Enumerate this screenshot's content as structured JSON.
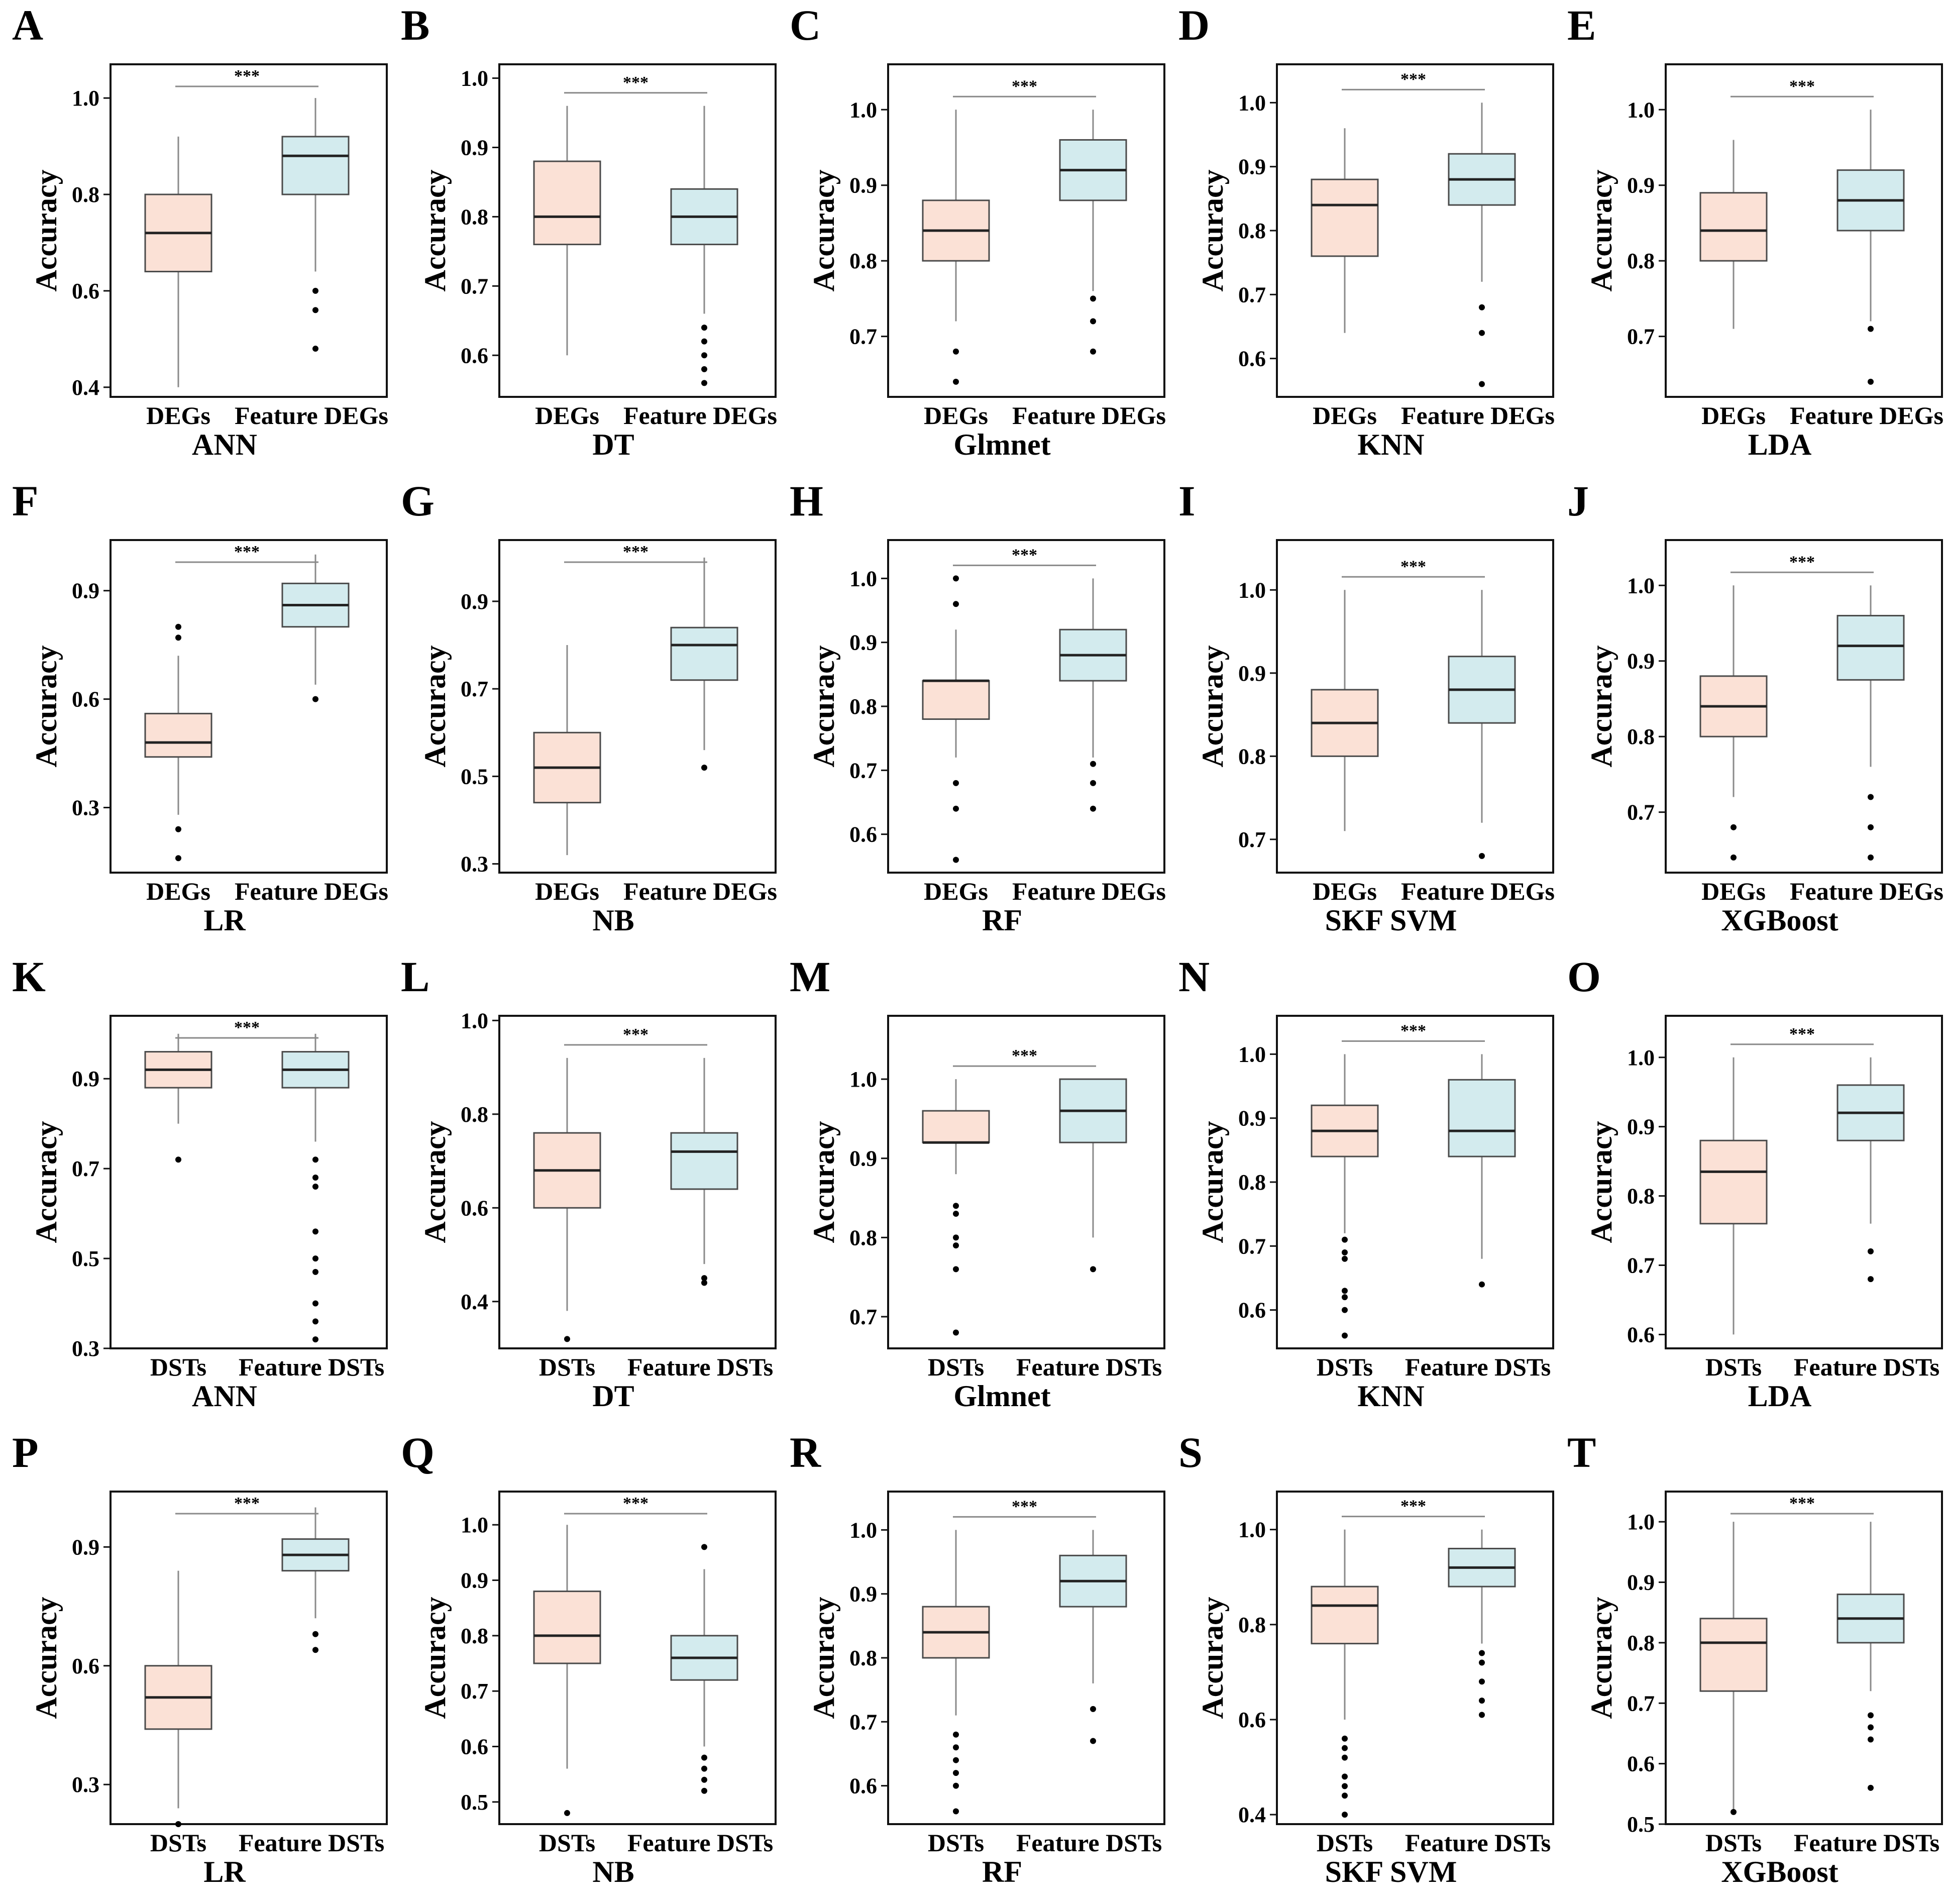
{
  "figure": {
    "y_label": "Accuracy",
    "significance": "***"
  },
  "chart_data": [
    {
      "panel": "A",
      "model": "ANN",
      "type": "box",
      "categories": [
        "DEGs",
        "Feature DEGs"
      ],
      "ylim": [
        0.38,
        1.07
      ],
      "yticks": [
        0.4,
        0.6,
        0.8,
        1.0
      ],
      "ytick_labels": [
        "0.4",
        "0.6",
        "0.8",
        "1.0"
      ],
      "boxes": [
        {
          "min": 0.4,
          "q1": 0.64,
          "median": 0.72,
          "q3": 0.8,
          "max": 0.92,
          "outliers": []
        },
        {
          "min": 0.64,
          "q1": 0.8,
          "median": 0.88,
          "q3": 0.92,
          "max": 1.0,
          "outliers": [
            0.6,
            0.56,
            0.48
          ]
        }
      ]
    },
    {
      "panel": "B",
      "model": "DT",
      "type": "box",
      "categories": [
        "DEGs",
        "Feature DEGs"
      ],
      "ylim": [
        0.54,
        1.02
      ],
      "yticks": [
        0.6,
        0.7,
        0.8,
        0.9,
        1.0
      ],
      "ytick_labels": [
        "0.6",
        "0.7",
        "0.8",
        "0.9",
        "1.0"
      ],
      "boxes": [
        {
          "min": 0.6,
          "q1": 0.76,
          "median": 0.8,
          "q3": 0.88,
          "max": 0.96,
          "outliers": []
        },
        {
          "min": 0.66,
          "q1": 0.76,
          "median": 0.8,
          "q3": 0.84,
          "max": 0.96,
          "outliers": [
            0.64,
            0.62,
            0.6,
            0.58,
            0.56
          ]
        }
      ]
    },
    {
      "panel": "C",
      "model": "Glmnet",
      "type": "box",
      "categories": [
        "DEGs",
        "Feature DEGs"
      ],
      "ylim": [
        0.62,
        1.06
      ],
      "yticks": [
        0.7,
        0.8,
        0.9,
        1.0
      ],
      "ytick_labels": [
        "0.7",
        "0.8",
        "0.9",
        "1.0"
      ],
      "boxes": [
        {
          "min": 0.72,
          "q1": 0.8,
          "median": 0.84,
          "q3": 0.88,
          "max": 1.0,
          "outliers": [
            0.68,
            0.64
          ]
        },
        {
          "min": 0.76,
          "q1": 0.88,
          "median": 0.92,
          "q3": 0.96,
          "max": 1.0,
          "outliers": [
            0.75,
            0.72,
            0.68
          ]
        }
      ]
    },
    {
      "panel": "D",
      "model": "KNN",
      "type": "box",
      "categories": [
        "DEGs",
        "Feature DEGs"
      ],
      "ylim": [
        0.54,
        1.06
      ],
      "yticks": [
        0.6,
        0.7,
        0.8,
        0.9,
        1.0
      ],
      "ytick_labels": [
        "0.6",
        "0.7",
        "0.8",
        "0.9",
        "1.0"
      ],
      "boxes": [
        {
          "min": 0.64,
          "q1": 0.76,
          "median": 0.84,
          "q3": 0.88,
          "max": 0.96,
          "outliers": []
        },
        {
          "min": 0.72,
          "q1": 0.84,
          "median": 0.88,
          "q3": 0.92,
          "max": 1.0,
          "outliers": [
            0.68,
            0.64,
            0.56
          ]
        }
      ]
    },
    {
      "panel": "E",
      "model": "LDA",
      "type": "box",
      "categories": [
        "DEGs",
        "Feature DEGs"
      ],
      "ylim": [
        0.62,
        1.06
      ],
      "yticks": [
        0.7,
        0.8,
        0.9,
        1.0
      ],
      "ytick_labels": [
        "0.7",
        "0.8",
        "0.9",
        "1.0"
      ],
      "boxes": [
        {
          "min": 0.71,
          "q1": 0.8,
          "median": 0.84,
          "q3": 0.89,
          "max": 0.96,
          "outliers": []
        },
        {
          "min": 0.72,
          "q1": 0.84,
          "median": 0.88,
          "q3": 0.92,
          "max": 1.0,
          "outliers": [
            0.71,
            0.64
          ]
        }
      ]
    },
    {
      "panel": "F",
      "model": "LR",
      "type": "box",
      "categories": [
        "DEGs",
        "Feature DEGs"
      ],
      "ylim": [
        0.12,
        1.04
      ],
      "yticks": [
        0.3,
        0.6,
        0.9
      ],
      "ytick_labels": [
        "0.3",
        "0.6",
        "0.9"
      ],
      "boxes": [
        {
          "min": 0.28,
          "q1": 0.44,
          "median": 0.48,
          "q3": 0.56,
          "max": 0.72,
          "outliers": [
            0.8,
            0.77,
            0.24,
            0.16
          ]
        },
        {
          "min": 0.64,
          "q1": 0.8,
          "median": 0.86,
          "q3": 0.92,
          "max": 1.0,
          "outliers": [
            0.6
          ]
        }
      ]
    },
    {
      "panel": "G",
      "model": "NB",
      "type": "box",
      "categories": [
        "DEGs",
        "Feature DEGs"
      ],
      "ylim": [
        0.28,
        1.04
      ],
      "yticks": [
        0.3,
        0.5,
        0.7,
        0.9
      ],
      "ytick_labels": [
        "0.3",
        "0.5",
        "0.7",
        "0.9"
      ],
      "boxes": [
        {
          "min": 0.32,
          "q1": 0.44,
          "median": 0.52,
          "q3": 0.6,
          "max": 0.8,
          "outliers": []
        },
        {
          "min": 0.56,
          "q1": 0.72,
          "median": 0.8,
          "q3": 0.84,
          "max": 1.0,
          "outliers": [
            0.52
          ]
        }
      ]
    },
    {
      "panel": "H",
      "model": "RF",
      "type": "box",
      "categories": [
        "DEGs",
        "Feature DEGs"
      ],
      "ylim": [
        0.54,
        1.06
      ],
      "yticks": [
        0.6,
        0.7,
        0.8,
        0.9,
        1.0
      ],
      "ytick_labels": [
        "0.6",
        "0.7",
        "0.8",
        "0.9",
        "1.0"
      ],
      "boxes": [
        {
          "min": 0.72,
          "q1": 0.78,
          "median": 0.84,
          "q3": 0.84,
          "max": 0.92,
          "outliers": [
            1.0,
            0.96,
            0.68,
            0.64,
            0.56
          ]
        },
        {
          "min": 0.72,
          "q1": 0.84,
          "median": 0.88,
          "q3": 0.92,
          "max": 1.0,
          "outliers": [
            0.71,
            0.68,
            0.64
          ]
        }
      ]
    },
    {
      "panel": "I",
      "model": "SKF SVM",
      "type": "box",
      "categories": [
        "DEGs",
        "Feature DEGs"
      ],
      "ylim": [
        0.66,
        1.06
      ],
      "yticks": [
        0.7,
        0.8,
        0.9,
        1.0
      ],
      "ytick_labels": [
        "0.7",
        "0.8",
        "0.9",
        "1.0"
      ],
      "boxes": [
        {
          "min": 0.71,
          "q1": 0.8,
          "median": 0.84,
          "q3": 0.88,
          "max": 1.0,
          "outliers": []
        },
        {
          "min": 0.72,
          "q1": 0.84,
          "median": 0.88,
          "q3": 0.92,
          "max": 1.0,
          "outliers": [
            0.68
          ]
        }
      ]
    },
    {
      "panel": "J",
      "model": "XGBoost",
      "type": "box",
      "categories": [
        "DEGs",
        "Feature DEGs"
      ],
      "ylim": [
        0.62,
        1.06
      ],
      "yticks": [
        0.7,
        0.8,
        0.9,
        1.0
      ],
      "ytick_labels": [
        "0.7",
        "0.8",
        "0.9",
        "1.0"
      ],
      "boxes": [
        {
          "min": 0.72,
          "q1": 0.8,
          "median": 0.84,
          "q3": 0.88,
          "max": 1.0,
          "outliers": [
            0.68,
            0.64
          ]
        },
        {
          "min": 0.76,
          "q1": 0.875,
          "median": 0.92,
          "q3": 0.96,
          "max": 1.0,
          "outliers": [
            0.72,
            0.68,
            0.64
          ]
        }
      ]
    },
    {
      "panel": "K",
      "model": "ANN",
      "type": "box",
      "categories": [
        "DSTs",
        "Feature DSTs"
      ],
      "ylim": [
        0.3,
        1.04
      ],
      "yticks": [
        0.3,
        0.5,
        0.7,
        0.9
      ],
      "ytick_labels": [
        "0.3",
        "0.5",
        "0.7",
        "0.9"
      ],
      "boxes": [
        {
          "min": 0.8,
          "q1": 0.88,
          "median": 0.92,
          "q3": 0.96,
          "max": 1.0,
          "outliers": [
            0.72
          ]
        },
        {
          "min": 0.76,
          "q1": 0.88,
          "median": 0.92,
          "q3": 0.96,
          "max": 1.0,
          "outliers": [
            0.72,
            0.68,
            0.66,
            0.56,
            0.5,
            0.47,
            0.4,
            0.36,
            0.32
          ]
        }
      ]
    },
    {
      "panel": "L",
      "model": "DT",
      "type": "box",
      "categories": [
        "DSTs",
        "Feature DSTs"
      ],
      "ylim": [
        0.3,
        1.01
      ],
      "yticks": [
        0.4,
        0.6,
        0.8,
        1.0
      ],
      "ytick_labels": [
        "0.4",
        "0.6",
        "0.8",
        "1.0"
      ],
      "boxes": [
        {
          "min": 0.38,
          "q1": 0.6,
          "median": 0.68,
          "q3": 0.76,
          "max": 0.92,
          "outliers": [
            0.32
          ]
        },
        {
          "min": 0.48,
          "q1": 0.64,
          "median": 0.72,
          "q3": 0.76,
          "max": 0.92,
          "outliers": [
            0.45,
            0.44
          ]
        }
      ]
    },
    {
      "panel": "M",
      "model": "Glmnet",
      "type": "box",
      "categories": [
        "DSTs",
        "Feature DSTs"
      ],
      "ylim": [
        0.66,
        1.08
      ],
      "yticks": [
        0.7,
        0.8,
        0.9,
        1.0
      ],
      "ytick_labels": [
        "0.7",
        "0.8",
        "0.9",
        "1.0"
      ],
      "boxes": [
        {
          "min": 0.88,
          "q1": 0.92,
          "median": 0.92,
          "q3": 0.96,
          "max": 1.0,
          "outliers": [
            0.84,
            0.83,
            0.8,
            0.79,
            0.76,
            0.68
          ]
        },
        {
          "min": 0.8,
          "q1": 0.92,
          "median": 0.96,
          "q3": 1.0,
          "max": 1.0,
          "outliers": [
            0.76
          ]
        }
      ]
    },
    {
      "panel": "N",
      "model": "KNN",
      "type": "box",
      "categories": [
        "DSTs",
        "Feature DSTs"
      ],
      "ylim": [
        0.54,
        1.06
      ],
      "yticks": [
        0.6,
        0.7,
        0.8,
        0.9,
        1.0
      ],
      "ytick_labels": [
        "0.6",
        "0.7",
        "0.8",
        "0.9",
        "1.0"
      ],
      "boxes": [
        {
          "min": 0.72,
          "q1": 0.84,
          "median": 0.88,
          "q3": 0.92,
          "max": 1.0,
          "outliers": [
            0.71,
            0.69,
            0.68,
            0.63,
            0.62,
            0.6,
            0.56
          ]
        },
        {
          "min": 0.68,
          "q1": 0.84,
          "median": 0.88,
          "q3": 0.96,
          "max": 1.0,
          "outliers": [
            0.64
          ]
        }
      ]
    },
    {
      "panel": "O",
      "model": "LDA",
      "type": "box",
      "categories": [
        "DSTs",
        "Feature DSTs"
      ],
      "ylim": [
        0.58,
        1.06
      ],
      "yticks": [
        0.6,
        0.7,
        0.8,
        0.9,
        1.0
      ],
      "ytick_labels": [
        "0.6",
        "0.7",
        "0.8",
        "0.9",
        "1.0"
      ],
      "boxes": [
        {
          "min": 0.6,
          "q1": 0.76,
          "median": 0.835,
          "q3": 0.88,
          "max": 1.0,
          "outliers": []
        },
        {
          "min": 0.76,
          "q1": 0.88,
          "median": 0.92,
          "q3": 0.96,
          "max": 1.0,
          "outliers": [
            0.72,
            0.68
          ]
        }
      ]
    },
    {
      "panel": "P",
      "model": "LR",
      "type": "box",
      "categories": [
        "DSTs",
        "Feature DSTs"
      ],
      "ylim": [
        0.2,
        1.04
      ],
      "yticks": [
        0.3,
        0.6,
        0.9
      ],
      "ytick_labels": [
        "0.3",
        "0.6",
        "0.9"
      ],
      "boxes": [
        {
          "min": 0.24,
          "q1": 0.44,
          "median": 0.52,
          "q3": 0.6,
          "max": 0.84,
          "outliers": [
            0.2
          ]
        },
        {
          "min": 0.72,
          "q1": 0.84,
          "median": 0.88,
          "q3": 0.92,
          "max": 1.0,
          "outliers": [
            0.68,
            0.64
          ]
        }
      ]
    },
    {
      "panel": "Q",
      "model": "NB",
      "type": "box",
      "categories": [
        "DSTs",
        "Feature DSTs"
      ],
      "ylim": [
        0.46,
        1.06
      ],
      "yticks": [
        0.5,
        0.6,
        0.7,
        0.8,
        0.9,
        1.0
      ],
      "ytick_labels": [
        "0.5",
        "0.6",
        "0.7",
        "0.8",
        "0.9",
        "1.0"
      ],
      "boxes": [
        {
          "min": 0.56,
          "q1": 0.75,
          "median": 0.8,
          "q3": 0.88,
          "max": 1.0,
          "outliers": [
            0.48
          ]
        },
        {
          "min": 0.6,
          "q1": 0.72,
          "median": 0.76,
          "q3": 0.8,
          "max": 0.92,
          "outliers": [
            0.96,
            0.58,
            0.56,
            0.54,
            0.52
          ]
        }
      ]
    },
    {
      "panel": "R",
      "model": "RF",
      "type": "box",
      "categories": [
        "DSTs",
        "Feature DSTs"
      ],
      "ylim": [
        0.54,
        1.06
      ],
      "yticks": [
        0.6,
        0.7,
        0.8,
        0.9,
        1.0
      ],
      "ytick_labels": [
        "0.6",
        "0.7",
        "0.8",
        "0.9",
        "1.0"
      ],
      "boxes": [
        {
          "min": 0.71,
          "q1": 0.8,
          "median": 0.84,
          "q3": 0.88,
          "max": 1.0,
          "outliers": [
            0.68,
            0.66,
            0.64,
            0.62,
            0.6,
            0.56
          ]
        },
        {
          "min": 0.76,
          "q1": 0.88,
          "median": 0.92,
          "q3": 0.96,
          "max": 1.0,
          "outliers": [
            0.72,
            0.67
          ]
        }
      ]
    },
    {
      "panel": "S",
      "model": "SKF SVM",
      "type": "box",
      "categories": [
        "DSTs",
        "Feature DSTs"
      ],
      "ylim": [
        0.38,
        1.08
      ],
      "yticks": [
        0.4,
        0.6,
        0.8,
        1.0
      ],
      "ytick_labels": [
        "0.4",
        "0.6",
        "0.8",
        "1.0"
      ],
      "boxes": [
        {
          "min": 0.6,
          "q1": 0.76,
          "median": 0.84,
          "q3": 0.88,
          "max": 1.0,
          "outliers": [
            0.56,
            0.54,
            0.52,
            0.48,
            0.46,
            0.44,
            0.4
          ]
        },
        {
          "min": 0.76,
          "q1": 0.88,
          "median": 0.92,
          "q3": 0.96,
          "max": 1.0,
          "outliers": [
            0.74,
            0.72,
            0.68,
            0.64,
            0.61
          ]
        }
      ]
    },
    {
      "panel": "T",
      "model": "XGBoost",
      "type": "box",
      "categories": [
        "DSTs",
        "Feature DSTs"
      ],
      "ylim": [
        0.5,
        1.05
      ],
      "yticks": [
        0.5,
        0.6,
        0.7,
        0.8,
        0.9,
        1.0
      ],
      "ytick_labels": [
        "0.5",
        "0.6",
        "0.7",
        "0.8",
        "0.9",
        "1.0"
      ],
      "boxes": [
        {
          "min": 0.52,
          "q1": 0.72,
          "median": 0.8,
          "q3": 0.84,
          "max": 1.0,
          "outliers": [
            0.52
          ]
        },
        {
          "min": 0.72,
          "q1": 0.8,
          "median": 0.84,
          "q3": 0.88,
          "max": 1.0,
          "outliers": [
            0.68,
            0.66,
            0.64,
            0.56
          ]
        }
      ]
    }
  ],
  "colors": {
    "group1_fill": "#fbe1d6",
    "group2_fill": "#d3ebee",
    "stroke": "#4a4a4a",
    "whisker": "#8a8a8a",
    "median": "#222222",
    "frame": "#111111"
  }
}
